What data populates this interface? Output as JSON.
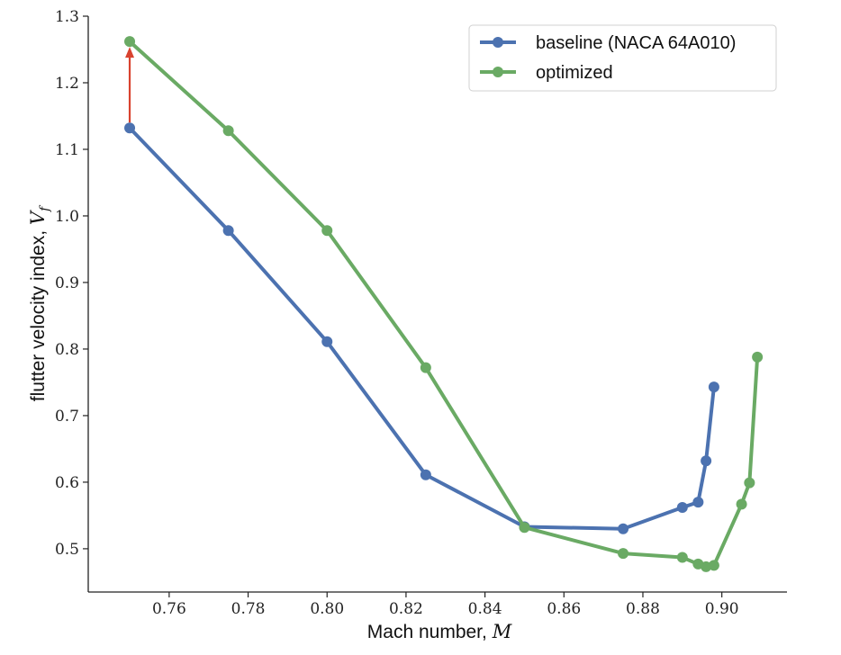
{
  "chart_data": {
    "type": "line",
    "xlabel": "Mach number, ",
    "xlabel_symbol": "M",
    "ylabel": "flutter velocity index, ",
    "ylabel_symbol": "V",
    "ylabel_subscript": "f",
    "xlim": [
      0.7395,
      0.9165
    ],
    "ylim": [
      0.435,
      1.3
    ],
    "xticks": [
      0.76,
      0.78,
      0.8,
      0.82,
      0.84,
      0.86,
      0.88,
      0.9
    ],
    "xtick_labels": [
      "0.76",
      "0.78",
      "0.80",
      "0.82",
      "0.84",
      "0.86",
      "0.88",
      "0.90"
    ],
    "yticks": [
      0.5,
      0.6,
      0.7,
      0.8,
      0.9,
      1.0,
      1.1,
      1.2,
      1.3
    ],
    "ytick_labels": [
      "0.5",
      "0.6",
      "0.7",
      "0.8",
      "0.9",
      "1.0",
      "1.1",
      "1.2",
      "1.3"
    ],
    "grid": false,
    "legend_position": "top-right",
    "series": [
      {
        "name": "baseline (NACA 64A010)",
        "color": "#4c72b0",
        "points": [
          [
            0.75,
            1.132
          ],
          [
            0.775,
            0.978
          ],
          [
            0.8,
            0.811
          ],
          [
            0.825,
            0.611
          ],
          [
            0.85,
            0.533
          ],
          [
            0.875,
            0.53
          ],
          [
            0.89,
            0.562
          ],
          [
            0.894,
            0.57
          ],
          [
            0.896,
            0.632
          ],
          [
            0.898,
            0.743
          ]
        ]
      },
      {
        "name": "optimized",
        "color": "#6aaa64",
        "points": [
          [
            0.75,
            1.262
          ],
          [
            0.775,
            1.128
          ],
          [
            0.8,
            0.978
          ],
          [
            0.825,
            0.772
          ],
          [
            0.85,
            0.532
          ],
          [
            0.875,
            0.493
          ],
          [
            0.89,
            0.487
          ],
          [
            0.894,
            0.477
          ],
          [
            0.896,
            0.473
          ],
          [
            0.898,
            0.475
          ],
          [
            0.905,
            0.567
          ],
          [
            0.907,
            0.599
          ],
          [
            0.909,
            0.788
          ]
        ]
      }
    ],
    "annotation_arrow": {
      "color": "#d9432f",
      "from": [
        0.75,
        1.132
      ],
      "to": [
        0.75,
        1.262
      ]
    }
  }
}
